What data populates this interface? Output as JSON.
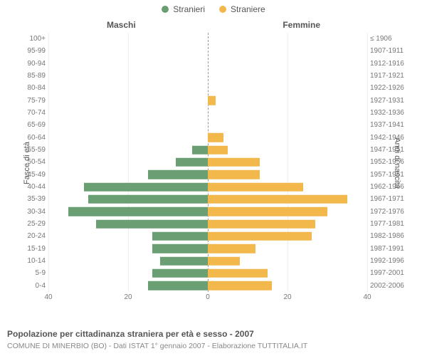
{
  "legend": {
    "male": {
      "label": "Stranieri",
      "color": "#6a9e73"
    },
    "female": {
      "label": "Straniere",
      "color": "#f2b84b"
    }
  },
  "columns": {
    "left": "Maschi",
    "right": "Femmine"
  },
  "axis_labels": {
    "left": "Fasce di età",
    "right": "Anni di nascita"
  },
  "x_axis": {
    "max": 40,
    "ticks_left": [
      40,
      20,
      0
    ],
    "ticks_right": [
      0,
      20,
      40
    ],
    "grid_color": "#eeeeee",
    "center_dash_color": "#999999"
  },
  "bar_style": {
    "height_pct": 72
  },
  "rows": [
    {
      "age": "100+",
      "birth": "≤ 1906",
      "m": 0,
      "f": 0
    },
    {
      "age": "95-99",
      "birth": "1907-1911",
      "m": 0,
      "f": 0
    },
    {
      "age": "90-94",
      "birth": "1912-1916",
      "m": 0,
      "f": 0
    },
    {
      "age": "85-89",
      "birth": "1917-1921",
      "m": 0,
      "f": 0
    },
    {
      "age": "80-84",
      "birth": "1922-1926",
      "m": 0,
      "f": 0
    },
    {
      "age": "75-79",
      "birth": "1927-1931",
      "m": 0,
      "f": 2
    },
    {
      "age": "70-74",
      "birth": "1932-1936",
      "m": 0,
      "f": 0
    },
    {
      "age": "65-69",
      "birth": "1937-1941",
      "m": 0,
      "f": 0
    },
    {
      "age": "60-64",
      "birth": "1942-1946",
      "m": 0,
      "f": 4
    },
    {
      "age": "55-59",
      "birth": "1947-1951",
      "m": 4,
      "f": 5
    },
    {
      "age": "50-54",
      "birth": "1952-1956",
      "m": 8,
      "f": 13
    },
    {
      "age": "45-49",
      "birth": "1957-1961",
      "m": 15,
      "f": 13
    },
    {
      "age": "40-44",
      "birth": "1962-1966",
      "m": 31,
      "f": 24
    },
    {
      "age": "35-39",
      "birth": "1967-1971",
      "m": 30,
      "f": 35
    },
    {
      "age": "30-34",
      "birth": "1972-1976",
      "m": 35,
      "f": 30
    },
    {
      "age": "25-29",
      "birth": "1977-1981",
      "m": 28,
      "f": 27
    },
    {
      "age": "20-24",
      "birth": "1982-1986",
      "m": 14,
      "f": 26
    },
    {
      "age": "15-19",
      "birth": "1987-1991",
      "m": 14,
      "f": 12
    },
    {
      "age": "10-14",
      "birth": "1992-1996",
      "m": 12,
      "f": 8
    },
    {
      "age": "5-9",
      "birth": "1997-2001",
      "m": 14,
      "f": 15
    },
    {
      "age": "0-4",
      "birth": "2002-2006",
      "m": 15,
      "f": 16
    }
  ],
  "caption": "Popolazione per cittadinanza straniera per età e sesso - 2007",
  "subcaption": "COMUNE DI MINERBIO (BO) - Dati ISTAT 1° gennaio 2007 - Elaborazione TUTTITALIA.IT",
  "background_color": "#ffffff",
  "text_color": "#555555"
}
